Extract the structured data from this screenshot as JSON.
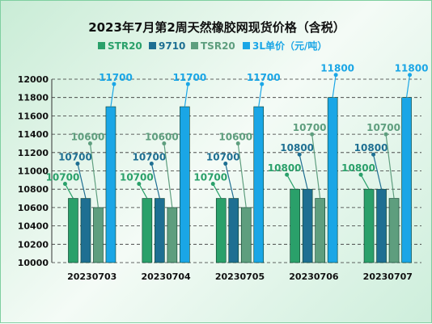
{
  "chart_data": {
    "type": "bar",
    "title": "2023年7月第2周天然橡胶网现货价格（含税）",
    "categories": [
      "20230703",
      "20230704",
      "20230705",
      "20230706",
      "20230707"
    ],
    "series": [
      {
        "name": "STR20",
        "color": "#2aa06a",
        "values": [
          10700,
          10700,
          10700,
          10800,
          10800
        ]
      },
      {
        "name": "9710",
        "color": "#1e6f92",
        "values": [
          10700,
          10700,
          10700,
          10800,
          10800
        ]
      },
      {
        "name": "TSR20",
        "color": "#5e9e7e",
        "values": [
          10600,
          10600,
          10600,
          10700,
          10700
        ]
      },
      {
        "name": "3L单价（元/吨）",
        "color": "#1aa6e6",
        "values": [
          11700,
          11700,
          11700,
          11800,
          11800
        ]
      }
    ],
    "ylim": [
      10000,
      12000
    ],
    "yticks": [
      10000,
      10200,
      10400,
      10600,
      10800,
      11000,
      11200,
      11400,
      11600,
      11800,
      12000
    ],
    "grid": true,
    "legend_position": "top"
  }
}
